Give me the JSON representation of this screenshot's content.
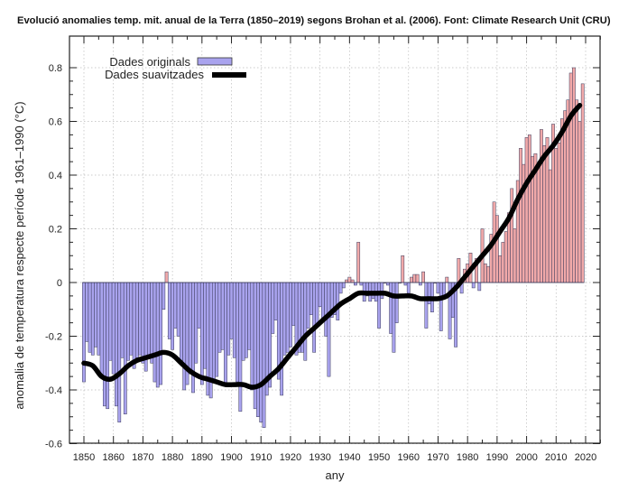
{
  "chart_data": {
    "type": "bar",
    "title": "Evolució anomalies temp. mit. anual de la Terra (1850–2019) segons Brohan et al. (2006). Font: Climate Research Unit (CRU)",
    "xlabel": "any",
    "ylabel": "anomalia de temperatura respecte període 1961–1990 (°C)",
    "xlim": [
      1845,
      2025
    ],
    "ylim": [
      -0.6,
      0.85
    ],
    "grid": true,
    "legend_position": "top-left",
    "x_ticks": [
      "1850",
      "1860",
      "1870",
      "1880",
      "1890",
      "1900",
      "1910",
      "1920",
      "1930",
      "1940",
      "1950",
      "1960",
      "1970",
      "1980",
      "1990",
      "2000",
      "2010",
      "2020"
    ],
    "y_ticks": [
      "-0.6",
      "-0.4",
      "-0.2",
      "0",
      "0.2",
      "0.4",
      "0.6",
      "0.8"
    ],
    "colors": {
      "negative": "#a9a3ee",
      "positive": "#f1a9a9",
      "smoothed": "#000000"
    },
    "series": [
      {
        "name": "Dades originals",
        "type": "bar",
        "start_year": 1850,
        "values": [
          -0.37,
          -0.22,
          -0.26,
          -0.27,
          -0.24,
          -0.27,
          -0.34,
          -0.46,
          -0.47,
          -0.29,
          -0.34,
          -0.46,
          -0.52,
          -0.28,
          -0.49,
          -0.29,
          -0.27,
          -0.32,
          -0.28,
          -0.27,
          -0.3,
          -0.33,
          -0.28,
          -0.3,
          -0.37,
          -0.39,
          -0.38,
          -0.1,
          0.04,
          -0.21,
          -0.25,
          -0.17,
          -0.2,
          -0.29,
          -0.4,
          -0.38,
          -0.34,
          -0.41,
          -0.3,
          -0.17,
          -0.38,
          -0.32,
          -0.42,
          -0.43,
          -0.37,
          -0.35,
          -0.26,
          -0.25,
          -0.38,
          -0.27,
          -0.21,
          -0.28,
          -0.37,
          -0.48,
          -0.29,
          -0.28,
          -0.25,
          -0.4,
          -0.47,
          -0.5,
          -0.52,
          -0.54,
          -0.42,
          -0.39,
          -0.19,
          -0.14,
          -0.36,
          -0.42,
          -0.27,
          -0.26,
          -0.24,
          -0.16,
          -0.27,
          -0.26,
          -0.26,
          -0.29,
          -0.17,
          -0.12,
          -0.26,
          -0.16,
          -0.09,
          -0.14,
          -0.2,
          -0.35,
          -0.13,
          -0.12,
          -0.14,
          -0.04,
          -0.02,
          0.01,
          0.02,
          0.01,
          -0.01,
          0.15,
          -0.01,
          -0.07,
          -0.05,
          -0.07,
          -0.06,
          -0.07,
          -0.17,
          -0.06,
          0.0,
          -0.01,
          -0.19,
          -0.26,
          -0.15,
          0.0,
          0.1,
          -0.01,
          -0.04,
          0.02,
          0.03,
          0.03,
          -0.01,
          0.04,
          -0.17,
          -0.08,
          -0.11,
          0.0,
          -0.04,
          -0.18,
          -0.06,
          0.02,
          -0.21,
          -0.13,
          -0.24,
          0.09,
          -0.04,
          0.05,
          0.07,
          0.11,
          -0.02,
          0.09,
          -0.03,
          0.2,
          0.07,
          0.06,
          0.18,
          0.3,
          0.25,
          0.1,
          0.15,
          0.19,
          0.26,
          0.35,
          0.2,
          0.38,
          0.5,
          0.44,
          0.54,
          0.55,
          0.47,
          0.48,
          0.44,
          0.57,
          0.51,
          0.54,
          0.42,
          0.59,
          0.5,
          0.52,
          0.61,
          0.64,
          0.68,
          0.78,
          0.8,
          0.68,
          0.6,
          0.74
        ]
      },
      {
        "name": "Dades suavitzades",
        "type": "line",
        "x": [
          1850,
          1853,
          1856,
          1859,
          1862,
          1865,
          1868,
          1871,
          1874,
          1877,
          1880,
          1883,
          1886,
          1889,
          1892,
          1895,
          1898,
          1901,
          1904,
          1907,
          1910,
          1913,
          1916,
          1919,
          1922,
          1925,
          1928,
          1931,
          1934,
          1937,
          1940,
          1943,
          1946,
          1949,
          1952,
          1955,
          1958,
          1961,
          1964,
          1967,
          1970,
          1973,
          1976,
          1979,
          1982,
          1985,
          1988,
          1991,
          1994,
          1997,
          2000,
          2003,
          2006,
          2009,
          2012,
          2015,
          2018
        ],
        "values": [
          -0.3,
          -0.31,
          -0.35,
          -0.36,
          -0.34,
          -0.31,
          -0.29,
          -0.28,
          -0.27,
          -0.26,
          -0.27,
          -0.3,
          -0.33,
          -0.35,
          -0.36,
          -0.37,
          -0.38,
          -0.38,
          -0.38,
          -0.39,
          -0.38,
          -0.35,
          -0.32,
          -0.28,
          -0.24,
          -0.2,
          -0.17,
          -0.14,
          -0.11,
          -0.08,
          -0.06,
          -0.04,
          -0.04,
          -0.04,
          -0.04,
          -0.05,
          -0.05,
          -0.05,
          -0.06,
          -0.06,
          -0.06,
          -0.05,
          -0.02,
          0.02,
          0.06,
          0.1,
          0.14,
          0.19,
          0.24,
          0.31,
          0.37,
          0.42,
          0.47,
          0.51,
          0.56,
          0.62,
          0.66
        ]
      }
    ]
  }
}
